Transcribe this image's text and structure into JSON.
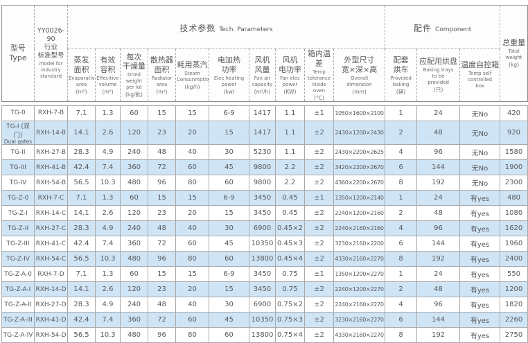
{
  "colors": {
    "stripe": "#cfe5f6",
    "text": "#57585b",
    "border": "#a9a9a9"
  },
  "table": {
    "group_headers": {
      "tech": {
        "zh": "技术参数",
        "en": "Tech. Parameters"
      },
      "component": {
        "zh": "配件",
        "en": "Component"
      }
    },
    "columns": [
      {
        "id": "type",
        "zh": "型号\nType",
        "en": "",
        "unit": ""
      },
      {
        "id": "industry-standard-model",
        "zh": "YY0026-90\n行业\n标准型号",
        "en": "model for\nindustry\nstandard",
        "unit": ""
      },
      {
        "id": "evaporative-area",
        "zh": "蒸发\n面积",
        "en": "Evaporative\narea",
        "unit": "(m²)"
      },
      {
        "id": "effective-volume",
        "zh": "有效\n容积",
        "en": "Effecitive\nvolume",
        "unit": "(m³)"
      },
      {
        "id": "dried-weight-per-lot",
        "zh": "每次\n干燥量",
        "en": "Dried weight\nper lot",
        "unit": "(kg/批)"
      },
      {
        "id": "radiator-area",
        "zh": "散热器\n面积",
        "en": "Radiator\narea",
        "unit": "(m²)"
      },
      {
        "id": "steam-consumption",
        "zh": "耗用蒸汽",
        "en": "Steam\nConsunmption",
        "unit": "(kg/h)"
      },
      {
        "id": "elec-heating-power",
        "zh": "电加热\n功率",
        "en": "Elec heating\npower",
        "unit": "(kw)"
      },
      {
        "id": "fan-air-capacity",
        "zh": "风机\n风量",
        "en": "Fan air\ncapacity",
        "unit": "(m³/h)"
      },
      {
        "id": "fan-elec-power",
        "zh": "风机\n电功率",
        "en": "Fan elec\npower",
        "unit": "(KW)"
      },
      {
        "id": "temp-tolerance",
        "zh": "箱内温差",
        "en": "Temp\ntolerance\ninside oven",
        "unit": "(°C)"
      },
      {
        "id": "overall-dimension",
        "zh": "外型尺寸\n宽×深×高",
        "en": "Overall\ndimension",
        "unit": "(mm)"
      },
      {
        "id": "baking-carts-provided",
        "zh": "配套\n烘车",
        "en": "Provided\nbaking",
        "unit": "(辆)"
      },
      {
        "id": "baking-trays",
        "zh": "应配用烘盘",
        "en": "Baking trays\nto be\nprovided",
        "unit": "(只)"
      },
      {
        "id": "temp-self-control-box",
        "zh": "温度自控箱",
        "en": "Temp self\ncontrolled\nbox",
        "unit": ""
      },
      {
        "id": "total-weight",
        "zh": "总重量",
        "en": "Total\nweight",
        "unit": "(kg)"
      }
    ],
    "rows": [
      {
        "type": "TG-0",
        "sub": "",
        "model": "RXH-7-B",
        "values": [
          "7.1",
          "1.3",
          "60",
          "15",
          "15",
          "6-9",
          "1417",
          "1.1",
          "±1",
          "1050×1600×2100",
          "1",
          "24",
          "无No",
          "420"
        ]
      },
      {
        "type": "TG-I (双门)",
        "sub": "Dual gates",
        "model": "RXH-14-B",
        "values": [
          "14.1",
          "2.6",
          "120",
          "23",
          "20",
          "15",
          "1417",
          "1.1",
          "±2",
          "2430×1200×2430",
          "2",
          "48",
          "无No",
          "920"
        ]
      },
      {
        "type": "TG-II",
        "sub": "",
        "model": "RXH-27-B",
        "values": [
          "28.3",
          "4.9",
          "240",
          "48",
          "40",
          "30",
          "5230",
          "1.1",
          "±2",
          "2430×2200×2625",
          "4",
          "96",
          "无No",
          "1580"
        ]
      },
      {
        "type": "TG-III",
        "sub": "",
        "model": "RXH-41-B",
        "values": [
          "42.4",
          "7.4",
          "360",
          "72",
          "60",
          "45",
          "9800",
          "2.2",
          "±2",
          "3420×2200×2670",
          "6",
          "144",
          "无No",
          "1900"
        ]
      },
      {
        "type": "TG-IV",
        "sub": "",
        "model": "RXH-54-B",
        "values": [
          "56.5",
          "10.3",
          "480",
          "96",
          "80",
          "60",
          "9800",
          "2.2",
          "±2",
          "4360×2200×2670",
          "8",
          "192",
          "无No",
          "2300"
        ]
      },
      {
        "type": "TG-Z-0",
        "sub": "",
        "model": "RXH-7-C",
        "values": [
          "7.1",
          "1.3",
          "60",
          "15",
          "15",
          "6-9",
          "3450",
          "0.45",
          "±1",
          "1350×1200×2140",
          "1",
          "24",
          "有yes",
          "480"
        ]
      },
      {
        "type": "TG-Z-I",
        "sub": "",
        "model": "RXH-14-C",
        "values": [
          "14.1",
          "2.6",
          "120",
          "23",
          "20",
          "15",
          "3450",
          "0.45",
          "±2",
          "2240×1200×2160",
          "2",
          "48",
          "有yes",
          "1080"
        ]
      },
      {
        "type": "TG-Z-II",
        "sub": "",
        "model": "RXH-27-C",
        "values": [
          "28.3",
          "4.9",
          "240",
          "48",
          "40",
          "30",
          "6900",
          "0.45×2",
          "±2",
          "2240×2160×2160",
          "4",
          "96",
          "有yes",
          "1620"
        ]
      },
      {
        "type": "TG-Z-III",
        "sub": "",
        "model": "RXH-41-C",
        "values": [
          "42.4",
          "7.4",
          "360",
          "72",
          "60",
          "45",
          "10350",
          "0.45×3",
          "±2",
          "3230×2160×2200",
          "6",
          "144",
          "有yes",
          "1960"
        ]
      },
      {
        "type": "TG-Z-IV",
        "sub": "",
        "model": "RXH-54-C",
        "values": [
          "56.5",
          "10.3",
          "480",
          "96",
          "80",
          "60",
          "13800",
          "0.45×4",
          "±2",
          "4330×2160×2270",
          "8",
          "192",
          "有yes",
          "2400"
        ]
      },
      {
        "type": "TG-Z-A-0",
        "sub": "",
        "model": "RXH-7-D",
        "values": [
          "7.1",
          "1.3",
          "60",
          "15",
          "15",
          "6-9",
          "3450",
          "0.75",
          "±1",
          "1350×1200×2270",
          "1",
          "24",
          "有yes",
          "550"
        ]
      },
      {
        "type": "TG-Z-A-I",
        "sub": "",
        "model": "RXH-14-D",
        "values": [
          "14.1",
          "2.6",
          "120",
          "23",
          "20",
          "15",
          "3450",
          "0.75",
          "±2",
          "2240×1200×2270",
          "2",
          "48",
          "有yes",
          "1200"
        ]
      },
      {
        "type": "TG-Z-A-II",
        "sub": "",
        "model": "RXH-27-D",
        "values": [
          "28.3",
          "4.9",
          "240",
          "48",
          "40",
          "30",
          "6900",
          "0.75×2",
          "±2",
          "2240×2160×2270",
          "4",
          "96",
          "有yes",
          "1820"
        ]
      },
      {
        "type": "TG-Z-A-III",
        "sub": "",
        "model": "RXH-41-D",
        "values": [
          "42.4",
          "7.4",
          "360",
          "72",
          "60",
          "45",
          "10350",
          "0.75×3",
          "±2",
          "3230×2160×2270",
          "6",
          "144",
          "有yes",
          "2260"
        ]
      },
      {
        "type": "TG-Z-A-IV",
        "sub": "",
        "model": "RXH-54-D",
        "values": [
          "56.5",
          "10.3",
          "480",
          "96",
          "80",
          "60",
          "13800",
          "0.75×4",
          "±2",
          "4330×2160×2270",
          "8",
          "192",
          "有yes",
          "2750"
        ]
      }
    ]
  }
}
